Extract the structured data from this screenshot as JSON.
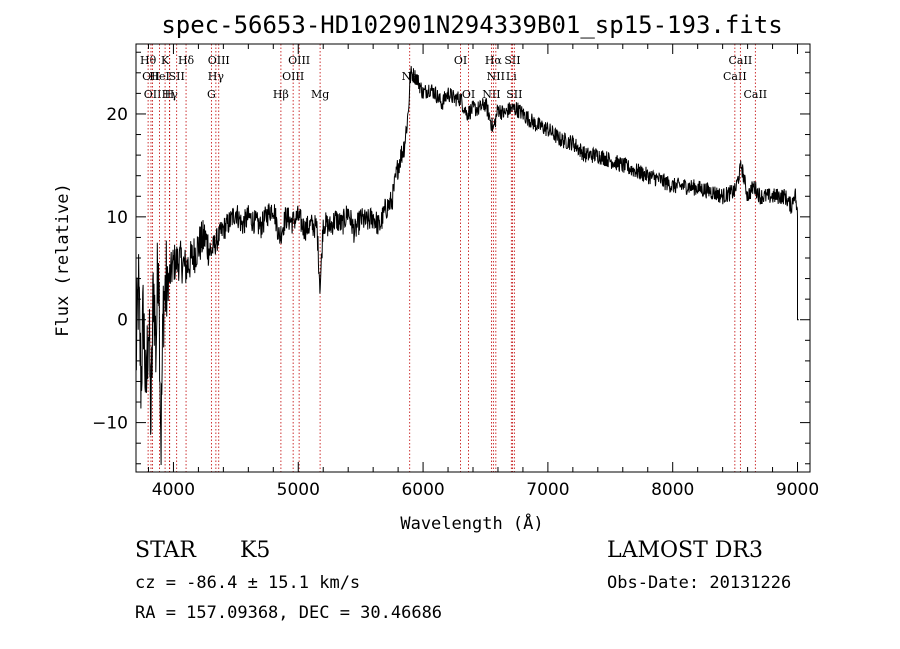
{
  "chart_data": {
    "type": "line",
    "title": "spec-56653-HD102901N294339B01_sp15-193.fits",
    "xlabel": "Wavelength (Å)",
    "ylabel": "Flux (relative)",
    "xlim": [
      3700,
      9100
    ],
    "ylim": [
      -14.8,
      26.8
    ],
    "xticks": [
      4000,
      5000,
      6000,
      7000,
      8000,
      9000
    ],
    "yticks": [
      -10,
      0,
      10,
      20
    ],
    "series": [
      {
        "name": "flux",
        "x": [
          3700,
          3720,
          3740,
          3760,
          3780,
          3800,
          3820,
          3840,
          3860,
          3880,
          3900,
          3920,
          3950,
          3980,
          4000,
          4050,
          4100,
          4150,
          4200,
          4250,
          4300,
          4350,
          4400,
          4450,
          4500,
          4550,
          4600,
          4650,
          4700,
          4750,
          4800,
          4850,
          4900,
          4950,
          5000,
          5050,
          5100,
          5150,
          5175,
          5200,
          5250,
          5300,
          5350,
          5400,
          5450,
          5500,
          5550,
          5600,
          5650,
          5700,
          5750,
          5800,
          5850,
          5880,
          5900,
          5950,
          6000,
          6050,
          6100,
          6150,
          6200,
          6250,
          6300,
          6350,
          6400,
          6450,
          6500,
          6550,
          6563,
          6600,
          6650,
          6700,
          6750,
          6800,
          6900,
          7000,
          7100,
          7200,
          7300,
          7400,
          7500,
          7600,
          7700,
          7800,
          7900,
          8000,
          8100,
          8200,
          8300,
          8400,
          8500,
          8550,
          8600,
          8650,
          8700,
          8800,
          8900,
          8950,
          8980,
          9000,
          9010
        ],
        "values": [
          -4.0,
          3.0,
          -6.0,
          1.0,
          -8.0,
          0.5,
          -10.0,
          4.0,
          -3.0,
          8.0,
          -12.0,
          2.0,
          3.5,
          4.5,
          5.5,
          5.8,
          5.0,
          6.0,
          7.2,
          8.0,
          6.5,
          7.8,
          8.8,
          9.5,
          10.5,
          9.2,
          10.0,
          9.5,
          9.0,
          10.2,
          11.0,
          8.0,
          10.0,
          9.5,
          10.0,
          8.8,
          9.2,
          9.0,
          3.0,
          9.5,
          9.0,
          9.8,
          9.2,
          10.5,
          8.5,
          9.8,
          9.5,
          10.0,
          9.0,
          10.8,
          11.5,
          15.0,
          17.0,
          20.0,
          24.0,
          23.5,
          22.0,
          22.5,
          22.0,
          21.0,
          22.0,
          21.5,
          21.5,
          20.0,
          20.5,
          20.5,
          21.0,
          19.0,
          18.5,
          20.5,
          20.0,
          20.5,
          20.5,
          20.0,
          19.0,
          18.5,
          17.5,
          17.2,
          16.0,
          16.0,
          15.5,
          15.0,
          14.5,
          14.0,
          13.6,
          13.0,
          13.0,
          12.8,
          12.5,
          12.0,
          12.5,
          15.0,
          12.0,
          13.0,
          12.0,
          12.0,
          12.0,
          11.0,
          12.5,
          10.0,
          0.0
        ]
      }
    ],
    "lines": [
      {
        "x": 3797,
        "label": "Hθ",
        "row": 0
      },
      {
        "x": 3820,
        "label": "OII",
        "row": 1
      },
      {
        "x": 3833,
        "label": "OII",
        "row": 2
      },
      {
        "x": 3889,
        "label": "HeI",
        "row": 1
      },
      {
        "x": 3933,
        "label": "K",
        "row": 0
      },
      {
        "x": 3970,
        "label": "Hγ",
        "row": 2
      },
      {
        "x": 3968,
        "label": "H",
        "row": 2
      },
      {
        "x": 4026,
        "label": "SII",
        "row": 1
      },
      {
        "x": 4101,
        "label": "Hδ",
        "row": 0
      },
      {
        "x": 4304,
        "label": "G",
        "row": 2
      },
      {
        "x": 4340,
        "label": "Hγ",
        "row": 1
      },
      {
        "x": 4363,
        "label": "OIII",
        "row": 0
      },
      {
        "x": 4861,
        "label": "Hβ",
        "row": 2
      },
      {
        "x": 4959,
        "label": "OIII",
        "row": 1
      },
      {
        "x": 5007,
        "label": "OIII",
        "row": 0
      },
      {
        "x": 5175,
        "label": "Mg",
        "row": 2
      },
      {
        "x": 5893,
        "label": "Na",
        "row": 1
      },
      {
        "x": 6300,
        "label": "OI",
        "row": 0
      },
      {
        "x": 6364,
        "label": "OI",
        "row": 2
      },
      {
        "x": 6548,
        "label": "NII",
        "row": 2
      },
      {
        "x": 6563,
        "label": "Hα",
        "row": 0
      },
      {
        "x": 6583,
        "label": "NII",
        "row": 1
      },
      {
        "x": 6707,
        "label": "Li",
        "row": 1
      },
      {
        "x": 6716,
        "label": "SII",
        "row": 0
      },
      {
        "x": 6731,
        "label": "SII",
        "row": 2
      },
      {
        "x": 8498,
        "label": "CaII",
        "row": 1
      },
      {
        "x": 8542,
        "label": "CaII",
        "row": 0
      },
      {
        "x": 8662,
        "label": "CaII",
        "row": 2
      }
    ]
  },
  "info": {
    "class": "STAR",
    "subclass": "K5",
    "survey": "LAMOST DR3",
    "cz": "cz = -86.4 ± 15.1 km/s",
    "obs_date": "Obs-Date: 20131226",
    "radec": "RA = 157.09368, DEC =  30.46686"
  }
}
